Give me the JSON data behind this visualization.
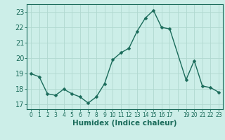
{
  "x": [
    0,
    1,
    2,
    3,
    4,
    5,
    6,
    7,
    8,
    9,
    10,
    11,
    12,
    13,
    14,
    15,
    16,
    17,
    19,
    20,
    21,
    22,
    23
  ],
  "y": [
    19.0,
    18.8,
    17.7,
    17.6,
    18.0,
    17.7,
    17.5,
    17.1,
    17.5,
    18.35,
    19.9,
    20.35,
    20.65,
    21.75,
    22.6,
    23.1,
    22.0,
    21.9,
    18.6,
    19.85,
    18.2,
    18.1,
    17.8
  ],
  "line_color": "#1a6b5a",
  "marker": "D",
  "markersize": 2.5,
  "linewidth": 1.0,
  "bg_color": "#cceee8",
  "grid_color": "#b0d8d0",
  "xlabel": "Humidex (Indice chaleur)",
  "xlabel_fontsize": 7.5,
  "ylabel_ticks": [
    17,
    18,
    19,
    20,
    21,
    22,
    23
  ],
  "xtick_labels": [
    "0",
    "1",
    "2",
    "3",
    "4",
    "5",
    "6",
    "7",
    "8",
    "9",
    "10",
    "11",
    "12",
    "13",
    "14",
    "15",
    "16",
    "17",
    "",
    "19",
    "20",
    "21",
    "22",
    "23"
  ],
  "xlim": [
    -0.5,
    23.5
  ],
  "ylim": [
    16.7,
    23.5
  ],
  "tick_color": "#1a6b5a",
  "ytick_fontsize": 7,
  "xtick_fontsize": 5.5,
  "axis_color": "#1a6b5a"
}
